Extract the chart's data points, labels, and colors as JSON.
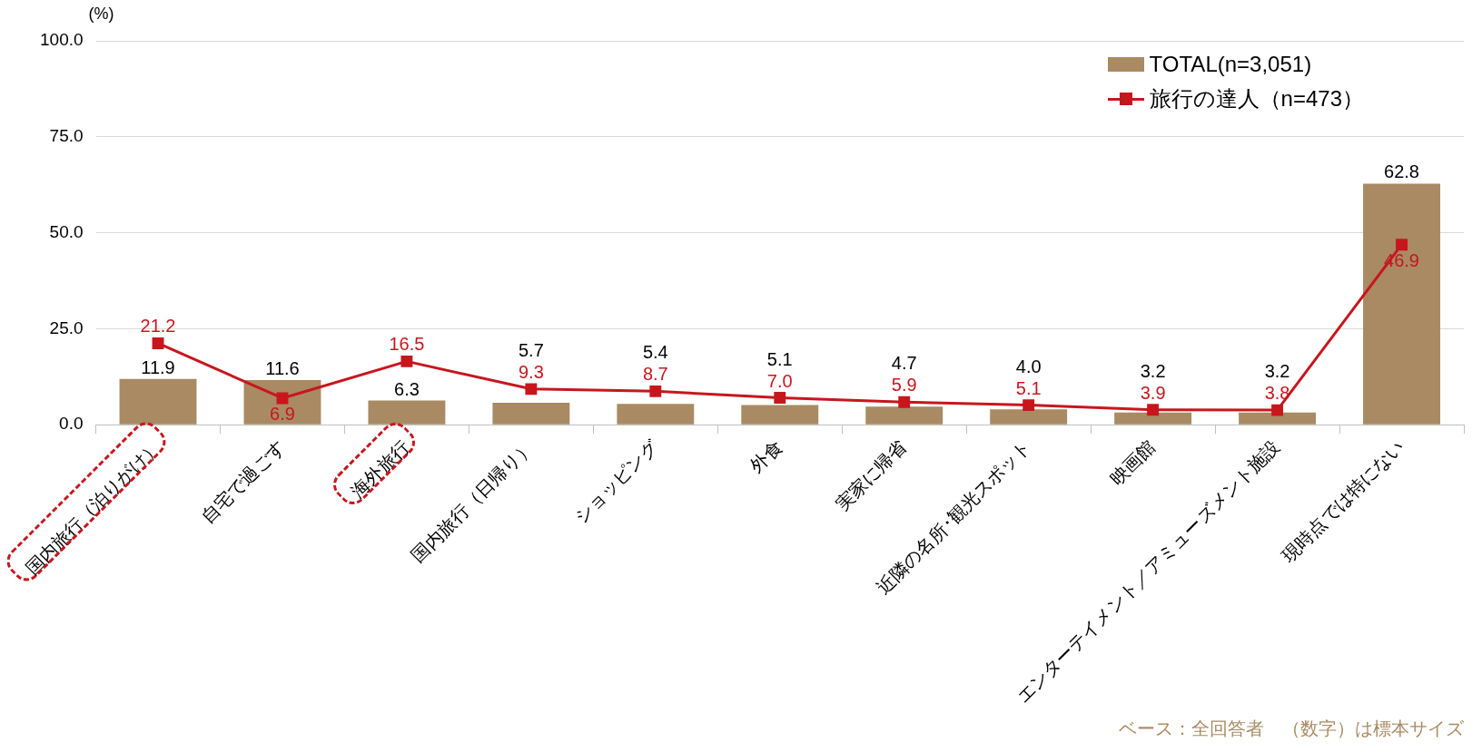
{
  "chart_data": {
    "type": "bar",
    "ylabel": "(%)",
    "categories": [
      "国内旅行（泊りがけ）",
      "自宅で過ごす",
      "海外旅行",
      "国内旅行（日帰り）",
      "ショッピング",
      "外食",
      "実家に帰省",
      "近隣の名所･観光スポット",
      "映画館",
      "エンターテイメント／アミューズメント施設",
      "現時点では特にない"
    ],
    "series": [
      {
        "name": "TOTAL(n=3,051)",
        "color": "#a98a62",
        "values": [
          11.9,
          11.6,
          6.3,
          5.7,
          5.4,
          5.1,
          4.7,
          4.0,
          3.2,
          3.2,
          62.8
        ],
        "value_labels": [
          "11.9",
          "11.6",
          "6.3",
          "5.7",
          "5.4",
          "5.1",
          "4.7",
          "4.0",
          "3.2",
          "3.2",
          "62.8"
        ]
      },
      {
        "name": "旅行の達人（n=473）",
        "type": "line",
        "color": "#c8161d",
        "values": [
          21.2,
          6.9,
          16.5,
          9.3,
          8.7,
          7.0,
          5.9,
          5.1,
          3.9,
          3.8,
          46.9
        ],
        "value_labels": [
          "21.2",
          "6.9",
          "16.5",
          "9.3",
          "8.7",
          "7.0",
          "5.9",
          "5.1",
          "3.9",
          "3.8",
          "46.9"
        ]
      }
    ],
    "ylim": [
      0,
      100
    ],
    "yticks": [
      {
        "value": 0,
        "label": "0.0"
      },
      {
        "value": 25,
        "label": "25.0"
      },
      {
        "value": 50,
        "label": "50.0"
      },
      {
        "value": 75,
        "label": "75.0"
      },
      {
        "value": 100,
        "label": "100.0"
      }
    ],
    "grid": "y",
    "legend": "top right",
    "marker": "square",
    "annotations": [
      "ベース：全回答者　（数字）は標本サイズ"
    ]
  }
}
